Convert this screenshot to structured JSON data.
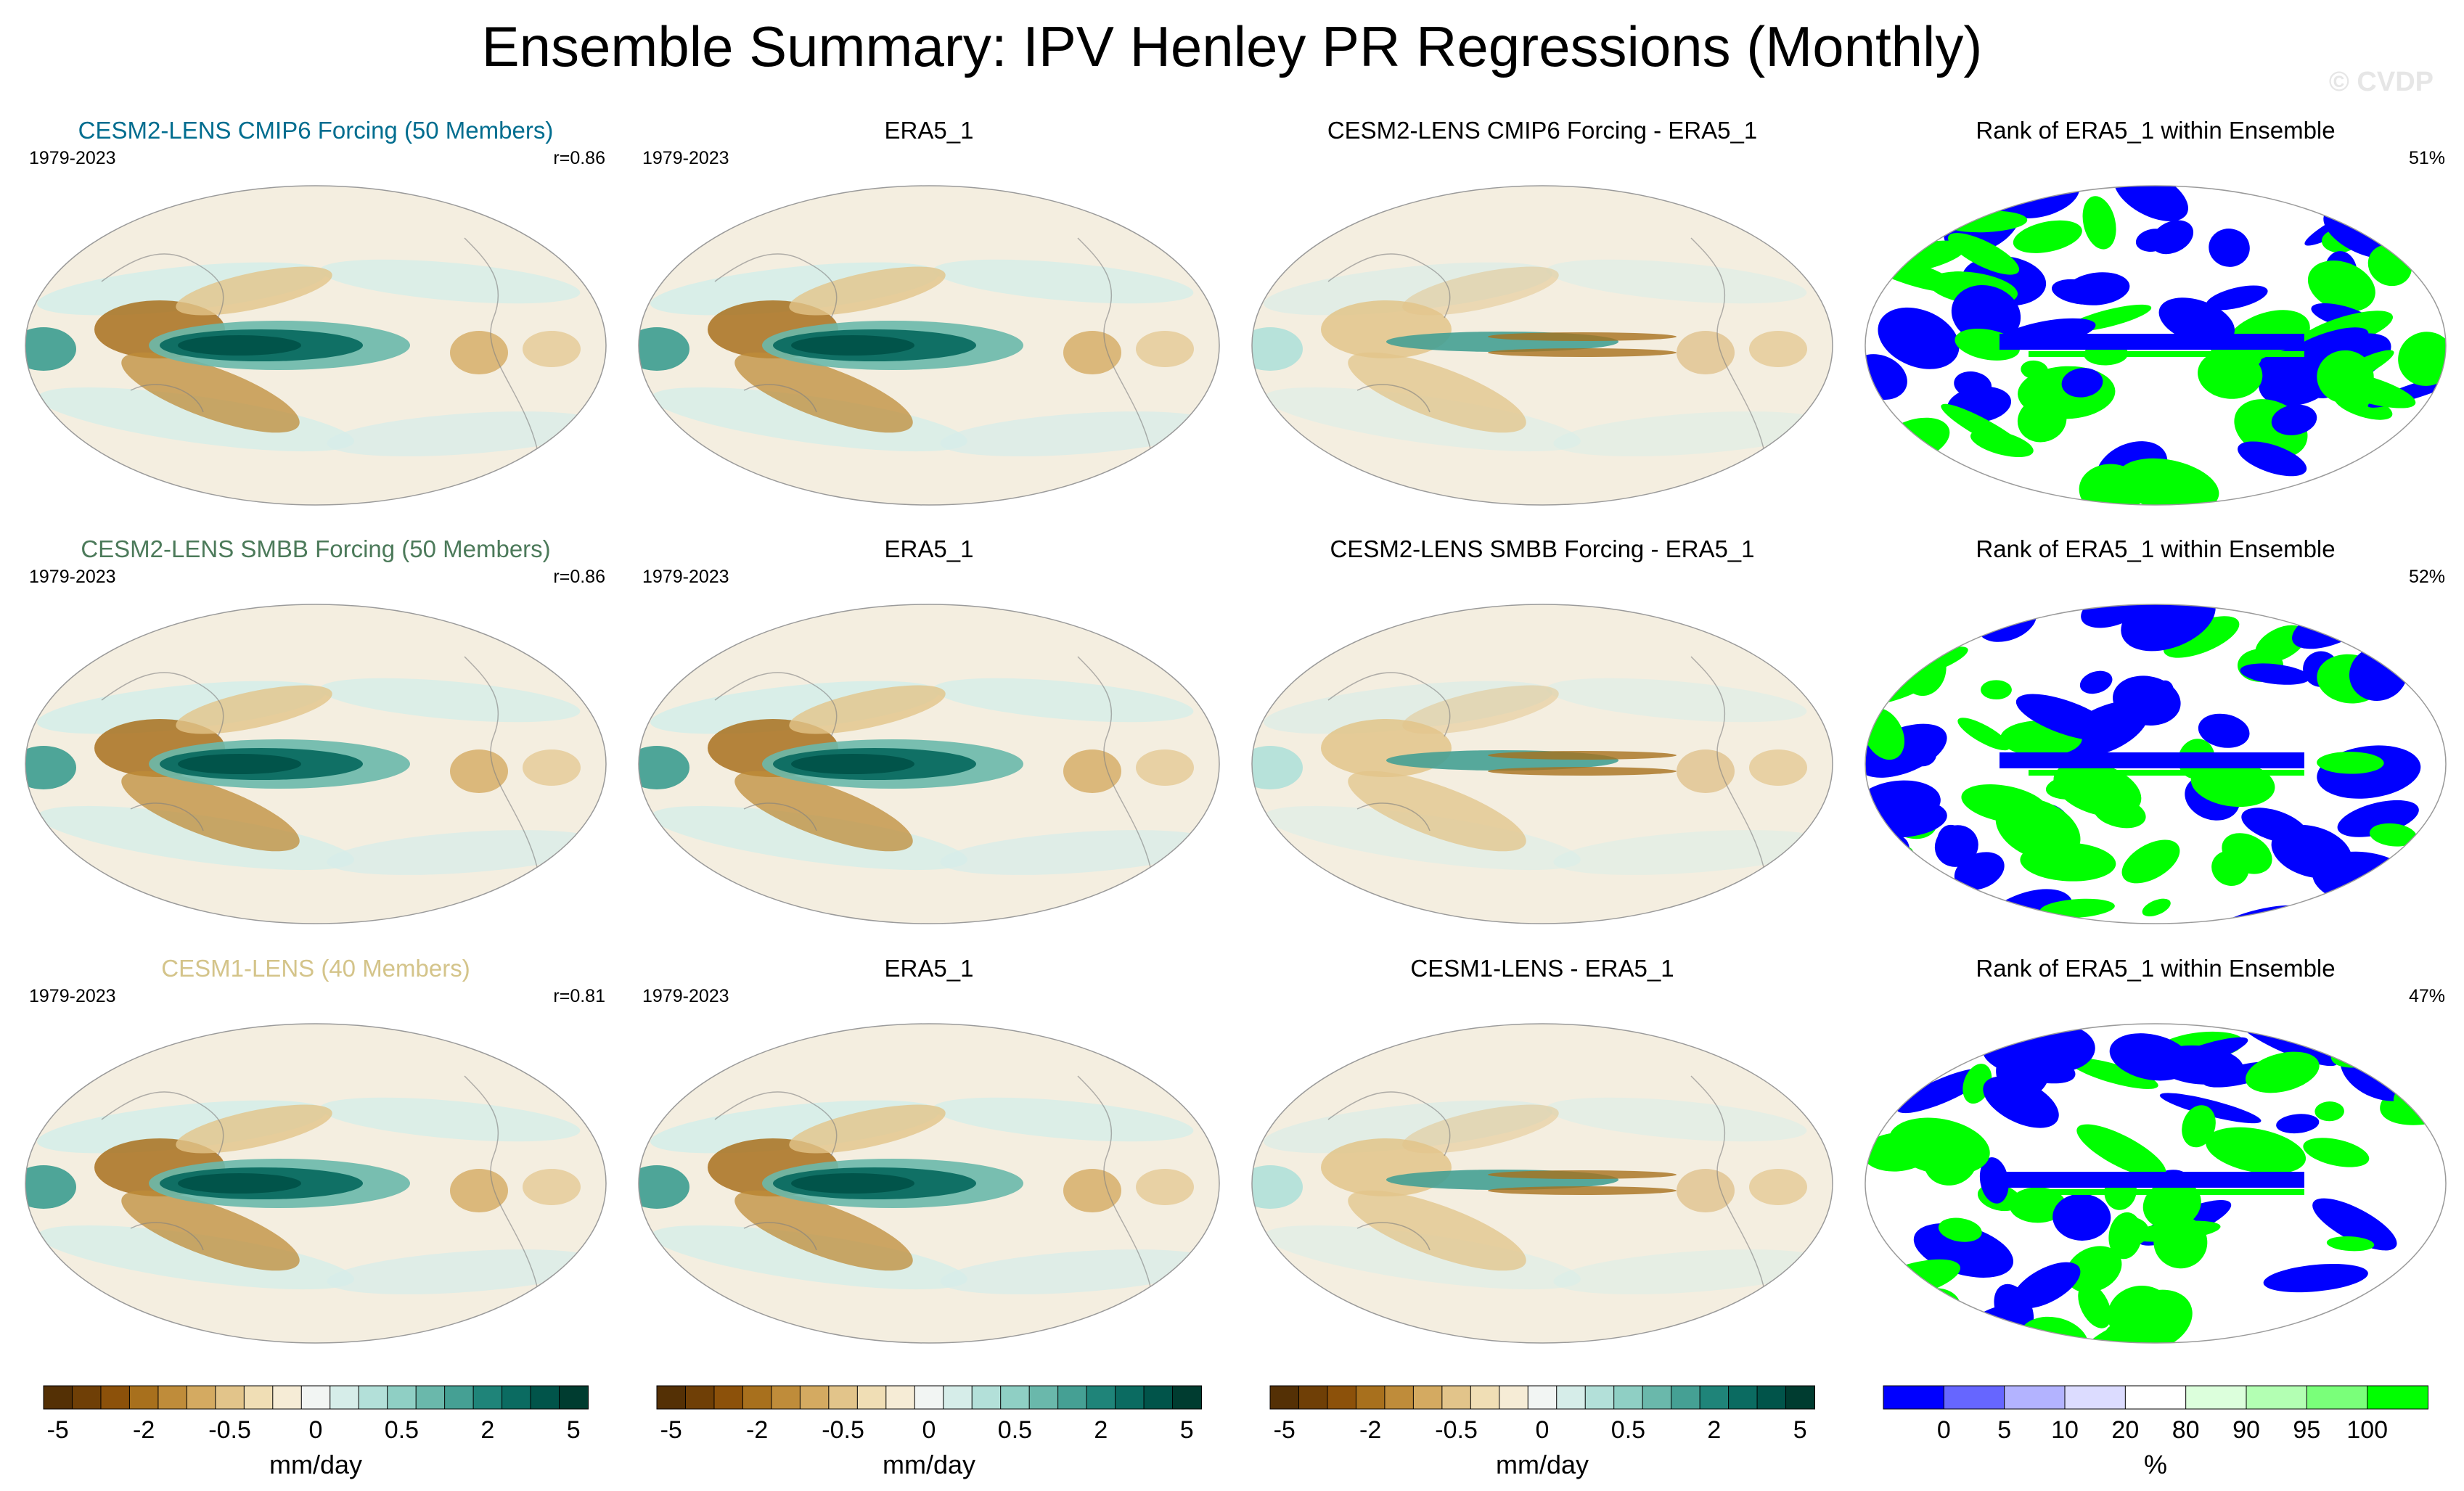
{
  "title": "Ensemble Summary: IPV Henley PR Regressions (Monthly)",
  "watermark": "© CVDP",
  "colors": {
    "brbg": [
      "#543005",
      "#6f3f06",
      "#8c510a",
      "#a8701d",
      "#bf8c3a",
      "#d4aa61",
      "#e2c48a",
      "#f0deb5",
      "#f6ecd6",
      "#f2f5f3",
      "#d6ede9",
      "#b3e0d9",
      "#8fcfc4",
      "#6ab8ab",
      "#45a094",
      "#1f8479",
      "#0b6b61",
      "#01544a",
      "#003c30"
    ],
    "rank": [
      "#0000ff",
      "#6666ff",
      "#b3b3ff",
      "#dcdcff",
      "#ffffff",
      "#dcffdc",
      "#b3ffb3",
      "#7aff7a",
      "#00ff00"
    ],
    "rows": [
      "#006d8f",
      "#4c7a5a",
      "#d4c48a"
    ]
  },
  "rows": [
    {
      "model": "CESM2-LENS CMIP6 Forcing (50 Members)",
      "period": "1979-2023",
      "corr": "r=0.86",
      "obs": "ERA5_1",
      "obs_period": "1979-2023",
      "diff": "CESM2-LENS CMIP6 Forcing - ERA5_1",
      "rank": "Rank of ERA5_1 within Ensemble",
      "rank_pct": "51%"
    },
    {
      "model": "CESM2-LENS SMBB Forcing (50 Members)",
      "period": "1979-2023",
      "corr": "r=0.86",
      "obs": "ERA5_1",
      "obs_period": "1979-2023",
      "diff": "CESM2-LENS SMBB Forcing - ERA5_1",
      "rank": "Rank of ERA5_1 within Ensemble",
      "rank_pct": "52%"
    },
    {
      "model": "CESM1-LENS (40 Members)",
      "period": "1979-2023",
      "corr": "r=0.81",
      "obs": "ERA5_1",
      "obs_period": "1979-2023",
      "diff": "CESM1-LENS - ERA5_1",
      "rank": "Rank of ERA5_1 within Ensemble",
      "rank_pct": "47%"
    }
  ],
  "chart_data": {
    "type": "heatmap",
    "projection": "Robinson global, Pacific-centered",
    "units": "mm/day",
    "colorbar_ticks": [
      "-5",
      "-2",
      "-0.5",
      "0",
      "0.5",
      "2",
      "5"
    ],
    "colorbar_levels": [
      -5,
      -4,
      -3,
      -2,
      -1.5,
      -1,
      -0.5,
      -0.25,
      -0.1,
      0,
      0.1,
      0.25,
      0.5,
      1,
      1.5,
      2,
      3,
      4,
      5
    ],
    "rank_units": "%",
    "rank_ticks": [
      "0",
      "5",
      "10",
      "20",
      "80",
      "90",
      "95",
      "100"
    ],
    "rank_levels": [
      0,
      5,
      10,
      20,
      80,
      90,
      95,
      100
    ]
  }
}
